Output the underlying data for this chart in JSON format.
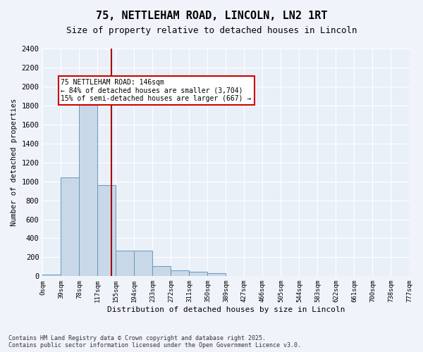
{
  "title": "75, NETTLEHAM ROAD, LINCOLN, LN2 1RT",
  "subtitle": "Size of property relative to detached houses in Lincoln",
  "xlabel": "Distribution of detached houses by size in Lincoln",
  "ylabel": "Number of detached properties",
  "bar_color": "#c8d8e8",
  "bar_edge_color": "#6699bb",
  "background_color": "#eaf0f8",
  "grid_color": "#ffffff",
  "annotation_box_color": "#cc0000",
  "property_line_color": "#aa0000",
  "property_value": 146,
  "annotation_text_line1": "75 NETTLEHAM ROAD: 146sqm",
  "annotation_text_line2": "← 84% of detached houses are smaller (3,704)",
  "annotation_text_line3": "15% of semi-detached houses are larger (667) →",
  "footer_line1": "Contains HM Land Registry data © Crown copyright and database right 2025.",
  "footer_line2": "Contains public sector information licensed under the Open Government Licence v3.0.",
  "bin_labels": [
    "0sqm",
    "39sqm",
    "78sqm",
    "117sqm",
    "155sqm",
    "194sqm",
    "233sqm",
    "272sqm",
    "311sqm",
    "350sqm",
    "389sqm",
    "427sqm",
    "466sqm",
    "505sqm",
    "544sqm",
    "583sqm",
    "622sqm",
    "661sqm",
    "700sqm",
    "738sqm",
    "777sqm"
  ],
  "values": [
    20,
    1040,
    1920,
    960,
    270,
    270,
    110,
    65,
    50,
    30,
    0,
    0,
    0,
    0,
    0,
    0,
    0,
    0,
    0,
    0
  ],
  "bin_starts": [
    0,
    39,
    78,
    117,
    155,
    194,
    233,
    272,
    311,
    350,
    389,
    427,
    466,
    505,
    544,
    583,
    622,
    661,
    700,
    738
  ],
  "bin_width": 39,
  "ylim": [
    0,
    2400
  ],
  "yticks": [
    0,
    200,
    400,
    600,
    800,
    1000,
    1200,
    1400,
    1600,
    1800,
    2000,
    2200,
    2400
  ]
}
